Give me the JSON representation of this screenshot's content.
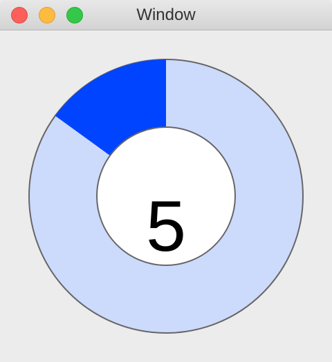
{
  "window": {
    "title": "Window"
  },
  "indicator": {
    "value": "5",
    "fraction": 0.15,
    "colors": {
      "filled": "#0044ff",
      "track": "#ccdafc",
      "center": "#ffffff",
      "outline": "#666666"
    }
  }
}
